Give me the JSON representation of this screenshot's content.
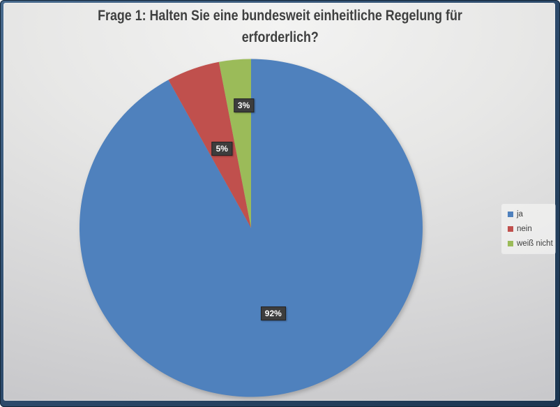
{
  "chart": {
    "title_line1": "Frage 1: Halten Sie eine bundesweit einheitliche Regelung für",
    "title_line2": "erforderlich?"
  },
  "chart_data": {
    "type": "pie",
    "title": "Frage 1: Halten Sie eine bundesweit einheitliche Regelung für erforderlich?",
    "categories": [
      "ja",
      "nein",
      "weiß nicht"
    ],
    "values": [
      92,
      5,
      3
    ],
    "data_labels": [
      "92%",
      "5%",
      "3%"
    ],
    "colors": [
      "#4F81BD",
      "#C0504D",
      "#9BBB59"
    ],
    "label_box_color": "#3d3d3d",
    "label_text_color": "#ffffff",
    "legend_position": "right",
    "start_angle_deg": 0,
    "direction": "clockwise",
    "frame_color": "#2e4c6d",
    "background_color": "#d9d9da",
    "title_color": "#3f4040"
  }
}
